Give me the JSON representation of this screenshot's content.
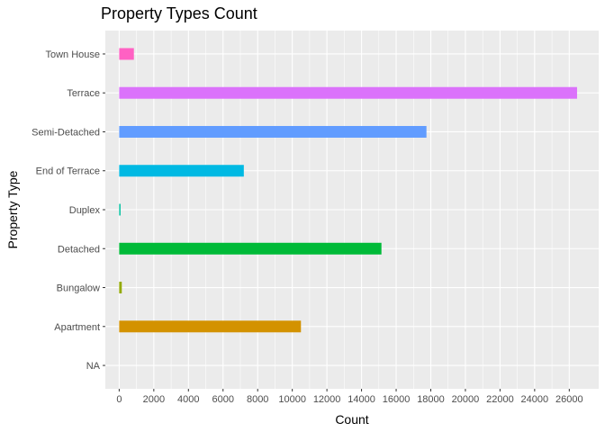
{
  "chart_data": {
    "type": "bar",
    "orientation": "horizontal",
    "title": "Property Types Count",
    "xlabel": "Count",
    "ylabel": "Property Type",
    "categories": [
      "NA",
      "Apartment",
      "Bungalow",
      "Detached",
      "Duplex",
      "End of Terrace",
      "Semi-Detached",
      "Terrace",
      "Town House"
    ],
    "values": [
      0,
      10500,
      150,
      15150,
      80,
      7200,
      17750,
      26450,
      850
    ],
    "colors": [
      "#F8766D",
      "#D39200",
      "#93AA00",
      "#00BA38",
      "#00C19F",
      "#00B9E3",
      "#619CFF",
      "#DB72FB",
      "#FF61C3"
    ],
    "xlim": [
      -800,
      27700
    ],
    "xticks": [
      0,
      2000,
      4000,
      6000,
      8000,
      10000,
      12000,
      14000,
      16000,
      18000,
      20000,
      22000,
      24000,
      26000
    ],
    "xtick_labels": [
      "0",
      "2000",
      "4000",
      "6000",
      "8000",
      "10000",
      "12000",
      "14000",
      "16000",
      "18000",
      "20000",
      "22000",
      "24000",
      "26000"
    ],
    "grid": true,
    "legend": "none",
    "panel_background": "#EBEBEB",
    "grid_color": "#FFFFFF"
  }
}
